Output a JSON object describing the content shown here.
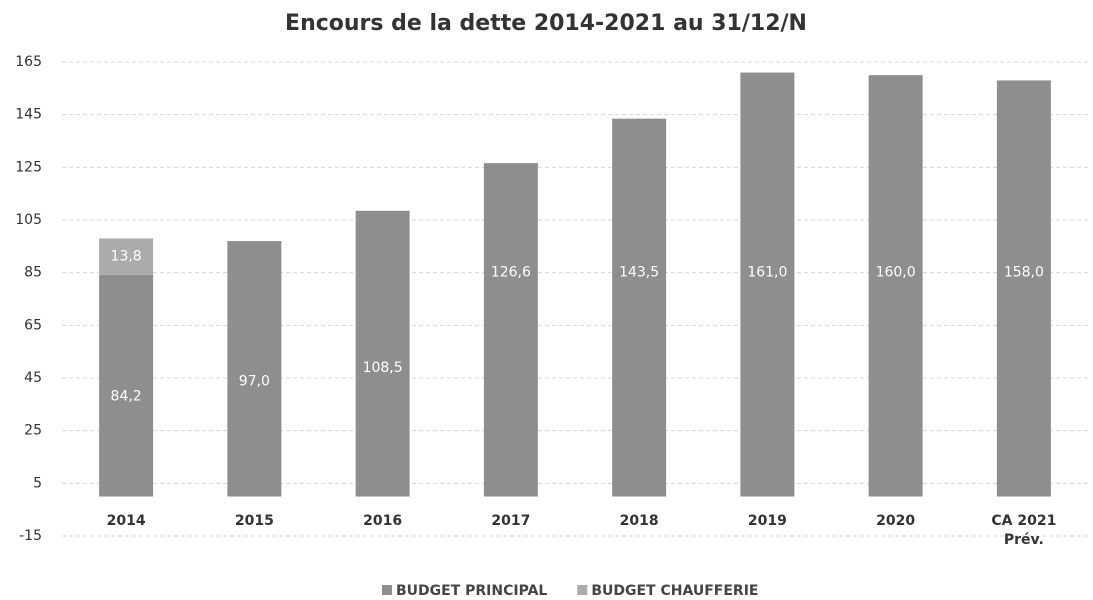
{
  "chart_data": {
    "type": "stacked_bar",
    "title": "Encours de la dette 2014-2021 au 31/12/N",
    "categories": [
      "2014",
      "2015",
      "2016",
      "2017",
      "2018",
      "2019",
      "2020",
      "CA 2021\nPrév."
    ],
    "series": [
      {
        "name": "BUDGET PRINCIPAL",
        "color": "#8e8e8e",
        "values": [
          84.2,
          97.0,
          108.5,
          126.6,
          143.5,
          161.0,
          160.0,
          158.0
        ],
        "value_labels": [
          "84,2",
          "97,0",
          "108,5",
          "126,6",
          "143,5",
          "161,0",
          "160,0",
          "158,0"
        ]
      },
      {
        "name": "BUDGET CHAUFFERIE",
        "color": "#ababab",
        "values": [
          13.8,
          null,
          null,
          null,
          null,
          null,
          null,
          null
        ],
        "value_labels": [
          "13,8",
          null,
          null,
          null,
          null,
          null,
          null,
          null
        ]
      }
    ],
    "ylim": [
      -15,
      165
    ],
    "yticks": [
      -15,
      5,
      25,
      45,
      65,
      85,
      105,
      125,
      145,
      165
    ],
    "grid": true,
    "legend": "bottom"
  }
}
